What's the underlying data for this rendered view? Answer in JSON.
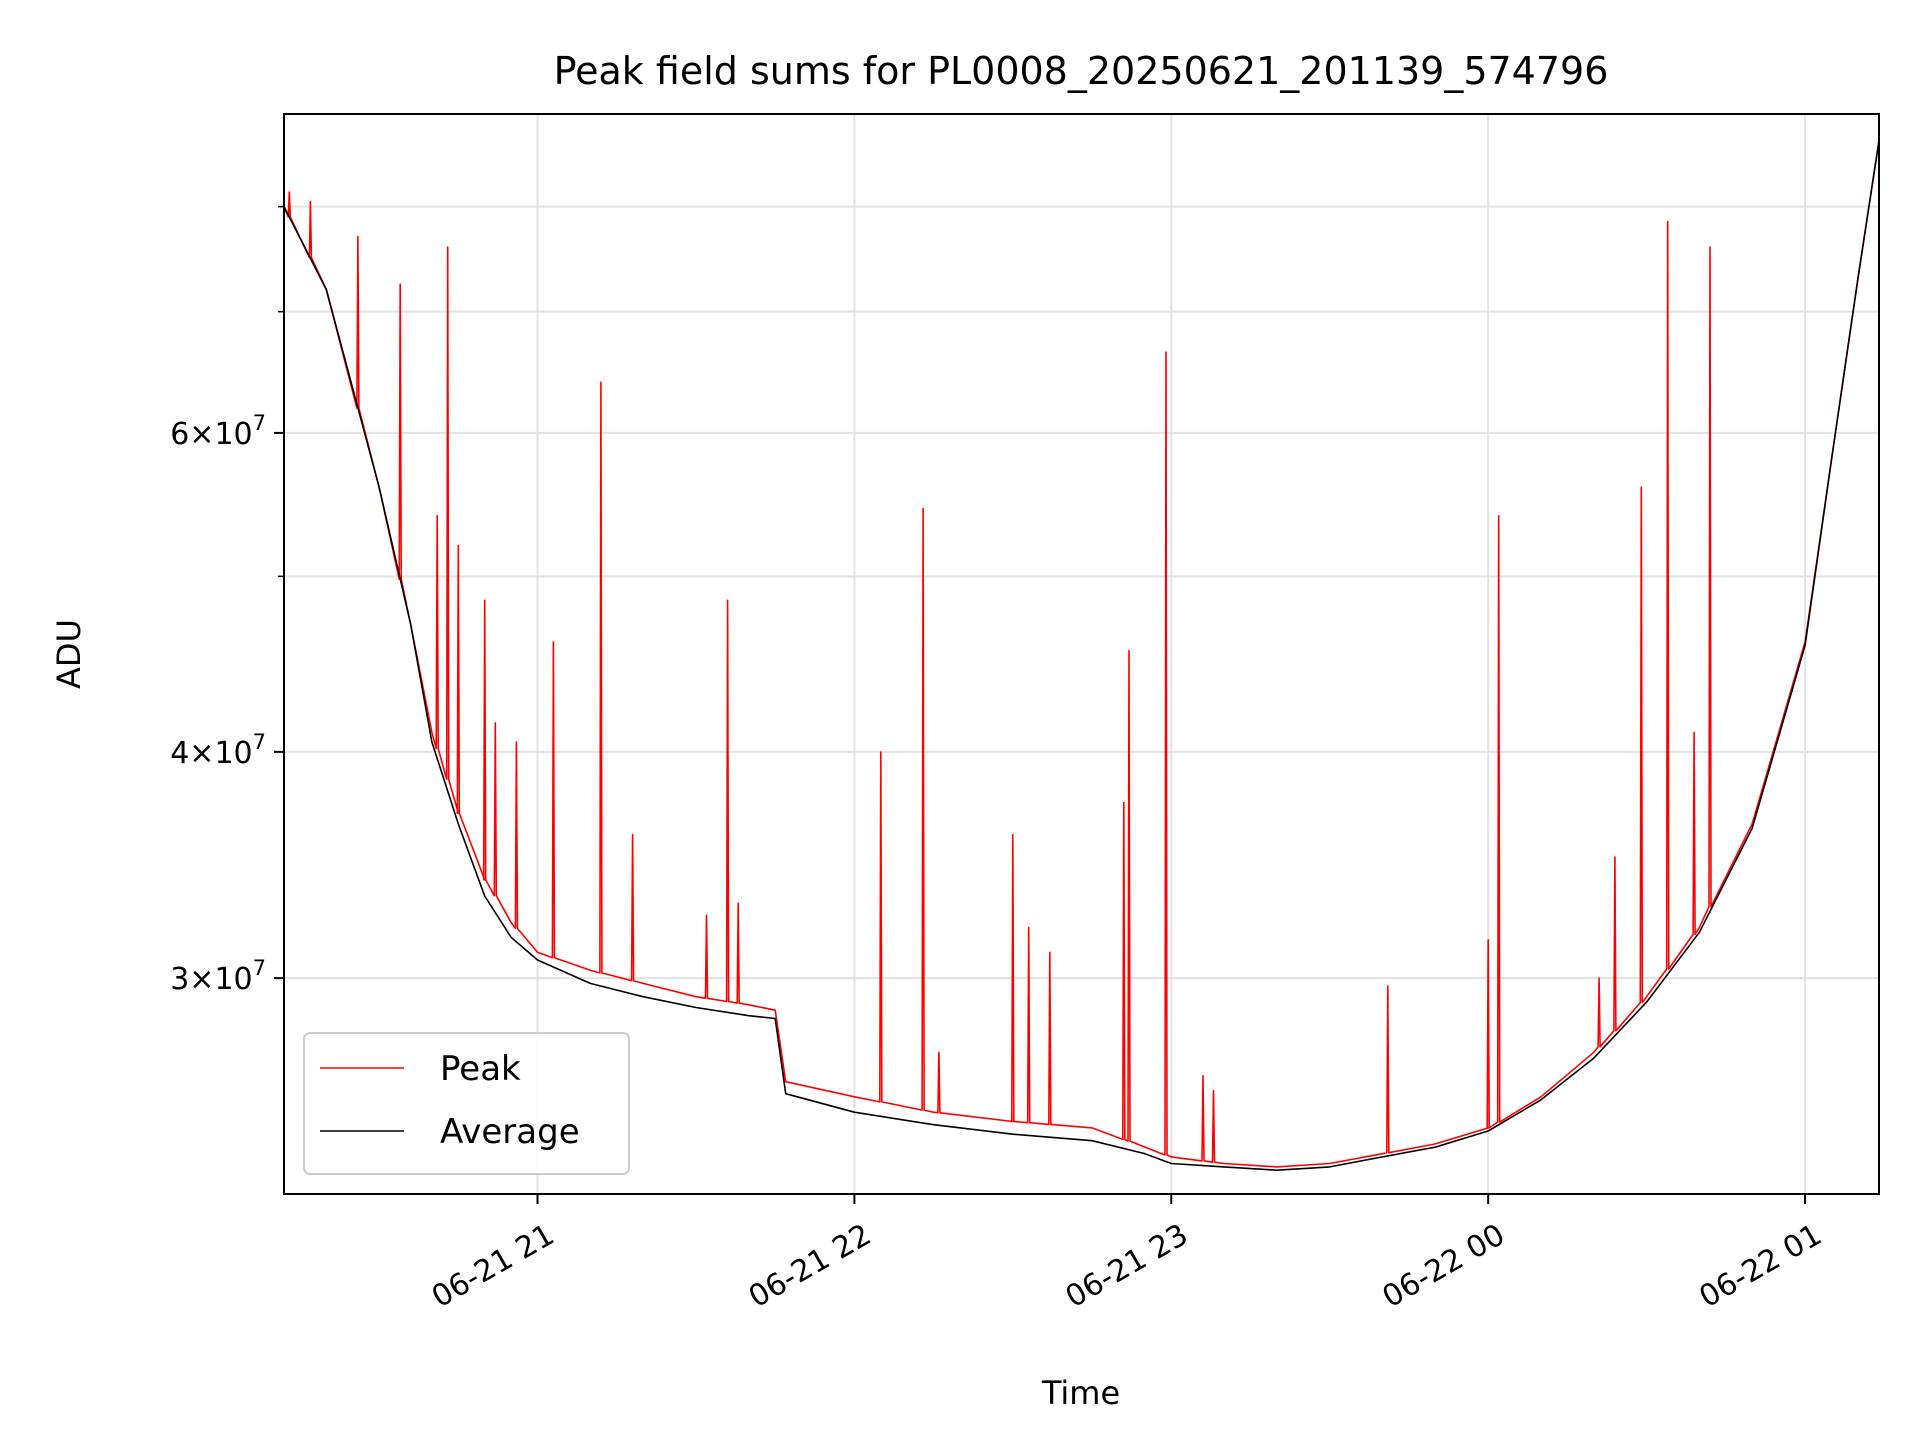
{
  "chart_data": {
    "type": "line",
    "title": "Peak field sums for PL0008_20250621_201139_574796",
    "xlabel": "Time",
    "ylabel": "ADU",
    "y_scale": "log",
    "ylim": [
      22800000,
      90000000
    ],
    "xlim": [
      "2025-06-21 20:12",
      "2025-06-22 01:14"
    ],
    "grid": true,
    "legend_position": "lower-left",
    "x_ticks": [
      {
        "value": "2025-06-21 21:00",
        "label": "06-21 21"
      },
      {
        "value": "2025-06-21 22:00",
        "label": "06-21 22"
      },
      {
        "value": "2025-06-21 23:00",
        "label": "06-21 23"
      },
      {
        "value": "2025-06-22 00:00",
        "label": "06-22 00"
      },
      {
        "value": "2025-06-22 01:00",
        "label": "06-22 01"
      }
    ],
    "y_ticks": [
      {
        "value": 30000000,
        "mantissa": "3",
        "exponent": "7"
      },
      {
        "value": 40000000,
        "mantissa": "4",
        "exponent": "7"
      },
      {
        "value": 60000000,
        "mantissa": "6",
        "exponent": "7"
      }
    ],
    "y_minor_ticks": [
      50000000,
      70000000,
      80000000
    ],
    "series": [
      {
        "name": "Peak",
        "color": "#ff0000",
        "x": [
          "2025-06-21 20:12",
          "2025-06-21 20:20",
          "2025-06-21 20:30",
          "2025-06-21 20:36",
          "2025-06-21 20:40",
          "2025-06-21 20:45",
          "2025-06-21 20:50",
          "2025-06-21 20:55",
          "2025-06-21 21:00",
          "2025-06-21 21:10",
          "2025-06-21 21:20",
          "2025-06-21 21:30",
          "2025-06-21 21:40",
          "2025-06-21 21:45",
          "2025-06-21 21:47",
          "2025-06-21 22:00",
          "2025-06-21 22:15",
          "2025-06-21 22:30",
          "2025-06-21 22:45",
          "2025-06-21 22:55",
          "2025-06-21 23:00",
          "2025-06-21 23:10",
          "2025-06-21 23:20",
          "2025-06-21 23:30",
          "2025-06-21 23:40",
          "2025-06-21 23:50",
          "2025-06-22 00:00",
          "2025-06-22 00:10",
          "2025-06-22 00:20",
          "2025-06-22 00:30",
          "2025-06-22 00:40",
          "2025-06-22 00:50",
          "2025-06-22 01:00",
          "2025-06-22 01:05",
          "2025-06-22 01:10",
          "2025-06-22 01:14"
        ],
        "values": [
          80000000,
          72000000,
          56000000,
          47000000,
          41000000,
          37000000,
          34000000,
          32200000,
          31000000,
          30300000,
          29800000,
          29300000,
          29000000,
          28800000,
          26300000,
          25800000,
          25300000,
          25000000,
          24800000,
          24200000,
          23900000,
          23700000,
          23600000,
          23700000,
          24000000,
          24300000,
          24800000,
          25800000,
          27300000,
          29300000,
          32000000,
          36500000,
          46000000,
          58000000,
          73000000,
          87000000
        ]
      },
      {
        "name": "Average",
        "color": "#000000",
        "x": [
          "2025-06-21 20:12",
          "2025-06-21 20:20",
          "2025-06-21 20:30",
          "2025-06-21 20:36",
          "2025-06-21 20:40",
          "2025-06-21 20:45",
          "2025-06-21 20:50",
          "2025-06-21 20:55",
          "2025-06-21 21:00",
          "2025-06-21 21:10",
          "2025-06-21 21:20",
          "2025-06-21 21:30",
          "2025-06-21 21:40",
          "2025-06-21 21:45",
          "2025-06-21 21:47",
          "2025-06-21 22:00",
          "2025-06-21 22:15",
          "2025-06-21 22:30",
          "2025-06-21 22:45",
          "2025-06-21 22:55",
          "2025-06-21 23:00",
          "2025-06-21 23:10",
          "2025-06-21 23:20",
          "2025-06-21 23:30",
          "2025-06-21 23:40",
          "2025-06-21 23:50",
          "2025-06-22 00:00",
          "2025-06-22 00:10",
          "2025-06-22 00:20",
          "2025-06-22 00:30",
          "2025-06-22 00:40",
          "2025-06-22 00:50",
          "2025-06-22 01:00",
          "2025-06-22 01:05",
          "2025-06-22 01:10",
          "2025-06-22 01:14"
        ],
        "values": [
          80000000,
          72000000,
          56000000,
          47000000,
          40500000,
          36500000,
          33300000,
          31600000,
          30700000,
          29800000,
          29300000,
          28900000,
          28600000,
          28500000,
          25900000,
          25300000,
          24900000,
          24600000,
          24400000,
          24000000,
          23700000,
          23600000,
          23500000,
          23600000,
          23900000,
          24200000,
          24700000,
          25700000,
          27100000,
          29100000,
          31800000,
          36300000,
          45800000,
          58000000,
          73000000,
          87000000
        ]
      }
    ],
    "peak_spikes": [
      {
        "x": "2025-06-21 20:13",
        "value": 81500000
      },
      {
        "x": "2025-06-21 20:17",
        "value": 80500000
      },
      {
        "x": "2025-06-21 20:26",
        "value": 77000000
      },
      {
        "x": "2025-06-21 20:34",
        "value": 72500000
      },
      {
        "x": "2025-06-21 20:41",
        "value": 54000000
      },
      {
        "x": "2025-06-21 20:43",
        "value": 76000000
      },
      {
        "x": "2025-06-21 20:45",
        "value": 52000000
      },
      {
        "x": "2025-06-21 20:50",
        "value": 48500000
      },
      {
        "x": "2025-06-21 20:52",
        "value": 41500000
      },
      {
        "x": "2025-06-21 20:56",
        "value": 40500000
      },
      {
        "x": "2025-06-21 21:03",
        "value": 46000000
      },
      {
        "x": "2025-06-21 21:12",
        "value": 64000000
      },
      {
        "x": "2025-06-21 21:18",
        "value": 36000000
      },
      {
        "x": "2025-06-21 21:32",
        "value": 32500000
      },
      {
        "x": "2025-06-21 21:36",
        "value": 48500000
      },
      {
        "x": "2025-06-21 21:38",
        "value": 33000000
      },
      {
        "x": "2025-06-21 22:05",
        "value": 40000000
      },
      {
        "x": "2025-06-21 22:13",
        "value": 54500000
      },
      {
        "x": "2025-06-21 22:16",
        "value": 27300000
      },
      {
        "x": "2025-06-21 22:30",
        "value": 36000000
      },
      {
        "x": "2025-06-21 22:33",
        "value": 32000000
      },
      {
        "x": "2025-06-21 22:37",
        "value": 31000000
      },
      {
        "x": "2025-06-21 22:51",
        "value": 37500000
      },
      {
        "x": "2025-06-21 22:52",
        "value": 45500000
      },
      {
        "x": "2025-06-21 22:59",
        "value": 66500000
      },
      {
        "x": "2025-06-21 23:06",
        "value": 26500000
      },
      {
        "x": "2025-06-21 23:08",
        "value": 26000000
      },
      {
        "x": "2025-06-21 23:41",
        "value": 29700000
      },
      {
        "x": "2025-06-22 00:00",
        "value": 31500000
      },
      {
        "x": "2025-06-22 00:02",
        "value": 54000000
      },
      {
        "x": "2025-06-22 00:21",
        "value": 30000000
      },
      {
        "x": "2025-06-22 00:24",
        "value": 35000000
      },
      {
        "x": "2025-06-22 00:29",
        "value": 56000000
      },
      {
        "x": "2025-06-22 00:34",
        "value": 78500000
      },
      {
        "x": "2025-06-22 00:39",
        "value": 41000000
      },
      {
        "x": "2025-06-22 00:42",
        "value": 76000000
      }
    ]
  }
}
